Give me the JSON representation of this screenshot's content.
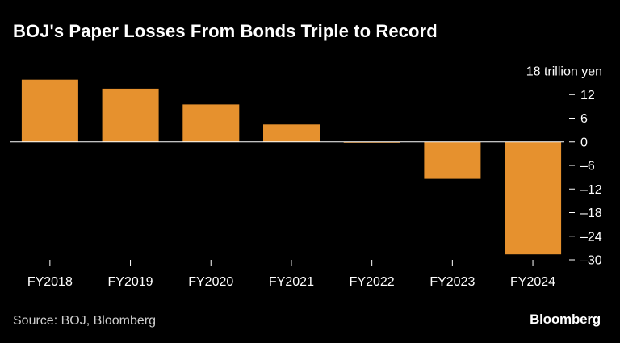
{
  "title": "BOJ's Paper Losses From Bonds Triple to Record",
  "source": "Source: BOJ, Bloomberg",
  "brand": "Bloomberg",
  "colors": {
    "background": "#000000",
    "bar": "#E6912E",
    "text": "#ffffff",
    "axis": "#ffffff",
    "muted": "#cfcfcf"
  },
  "chart_data": {
    "type": "bar",
    "title": "BOJ's Paper Losses From Bonds Triple to Record",
    "categories": [
      "FY2018",
      "FY2019",
      "FY2020",
      "FY2021",
      "FY2022",
      "FY2023",
      "FY2024"
    ],
    "values": [
      15.8,
      13.5,
      9.5,
      4.4,
      -0.2,
      -9.4,
      -28.6
    ],
    "unit_label": "18 trillion yen",
    "yticks": [
      18,
      12,
      6,
      0,
      -6,
      -12,
      -18,
      -24,
      -30
    ],
    "ytick_labels": [
      "18 trillion yen",
      "12",
      "6",
      "0",
      "–6",
      "–12",
      "–18",
      "–24",
      "–30"
    ],
    "ylim": [
      -30,
      18
    ],
    "xlabel": "",
    "ylabel": "",
    "grid": false
  }
}
